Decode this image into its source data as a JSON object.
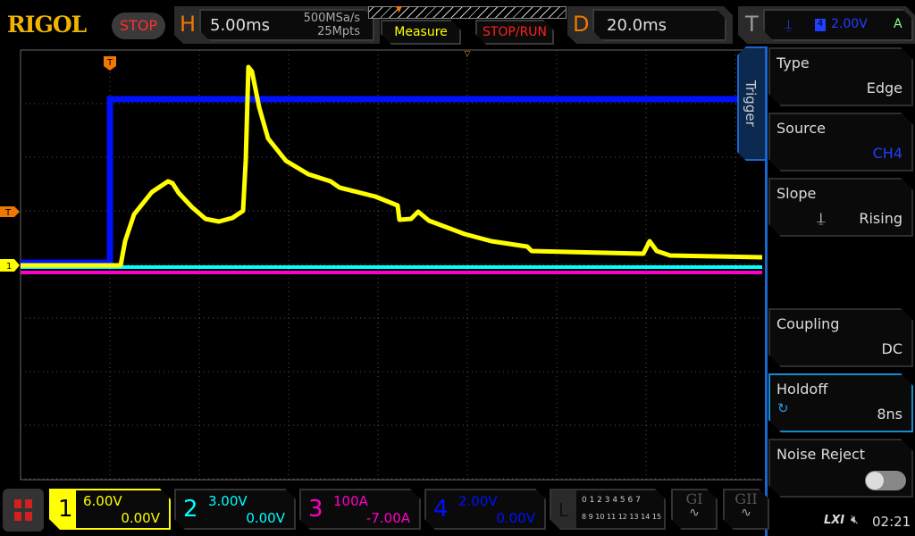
{
  "header": {
    "logo": "RIGOL",
    "run_state": "STOP",
    "h_label": "H",
    "timebase": "5.00ms",
    "sample_rate": "500MSa/s",
    "memory_depth": "25Mpts",
    "measure_label": "Measure",
    "stop_run_label": "STOP/RUN",
    "d_label": "D",
    "delay": "20.0ms",
    "t_label": "T",
    "trigger_level": "2.00V",
    "trigger_mode": "A",
    "trigger_source_num": "4"
  },
  "markers": {
    "trigger_pos": "T",
    "trigger_level": "T",
    "ch1": "1"
  },
  "trigger_menu": {
    "tab": "Trigger",
    "items": [
      {
        "title": "Type",
        "value": "Edge"
      },
      {
        "title": "Source",
        "value": "CH4"
      },
      {
        "title": "Slope",
        "value": "Rising"
      },
      {
        "title": "Coupling",
        "value": "DC"
      },
      {
        "title": "Holdoff",
        "value": "8ns"
      },
      {
        "title": "Noise Reject",
        "value": "off"
      }
    ]
  },
  "channels": [
    {
      "num": "1",
      "scale": "6.00V",
      "offset": "0.00V",
      "color": "#ffff00"
    },
    {
      "num": "2",
      "scale": "3.00V",
      "offset": "0.00V",
      "color": "#00ffff"
    },
    {
      "num": "3",
      "scale": "100A",
      "offset": "-7.00A",
      "color": "#ff00c8"
    },
    {
      "num": "4",
      "scale": "2.00V",
      "offset": "0.00V",
      "color": "#0000ff"
    }
  ],
  "logic": {
    "label": "L",
    "row1": "0 1 2 3  4 5 6 7",
    "row2": "8 9 10 11 12 13 14 15"
  },
  "gen": {
    "g1": "GI",
    "g2": "GII"
  },
  "status": {
    "lxi": "LXI",
    "time": "02:21"
  }
}
